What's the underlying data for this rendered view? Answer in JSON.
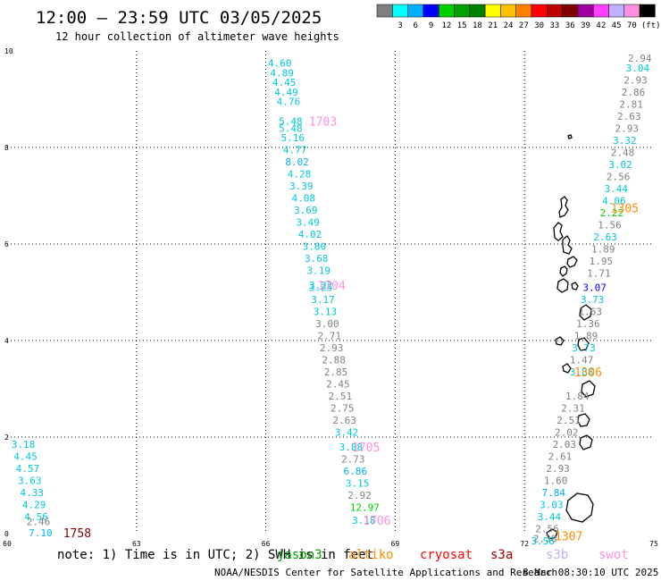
{
  "header": {
    "title": "12:00 – 23:59 UTC 03/05/2025",
    "subtitle": "12 hour collection of altimeter wave heights"
  },
  "colorbar": {
    "colors": [
      "#7f7f7f",
      "#00ffff",
      "#00b0ff",
      "#0000ff",
      "#00d000",
      "#00a000",
      "#008000",
      "#ffff00",
      "#ffc000",
      "#ff8000",
      "#ff0000",
      "#c00000",
      "#800000",
      "#a000a0",
      "#ff40ff",
      "#c0b0ff",
      "#ff90e0",
      "#000000"
    ],
    "labels": [
      "3",
      "6",
      "9",
      "12",
      "15",
      "18",
      "21",
      "24",
      "27",
      "30",
      "33",
      "36",
      "39",
      "42",
      "45",
      "70"
    ],
    "unit": "(ft)"
  },
  "legend": {
    "note": "note: 1) Time is in UTC; 2) SWH is in feet",
    "satellites": [
      {
        "name": "jason3",
        "color": "#00a000"
      },
      {
        "name": "altiko",
        "color": "#ff9000"
      },
      {
        "name": "cryosat",
        "color": "#ff0000"
      },
      {
        "name": "s3a",
        "color": "#a00000"
      },
      {
        "name": "s3b",
        "color": "#c0b0ff"
      },
      {
        "name": "swot",
        "color": "#ff90e0"
      }
    ]
  },
  "footer": {
    "credit": "NOAA/NESDIS Center for Satellite Applications and Research",
    "timestamp": "8 Mar 08:30:10 UTC 2025"
  },
  "chart_data": {
    "type": "scatter",
    "xlim": [
      60,
      75
    ],
    "ylim": [
      0,
      10
    ],
    "xticks": [
      "60",
      "63",
      "66",
      "69",
      "72",
      "75"
    ],
    "yticks": [
      "0",
      "2",
      "4",
      "6",
      "8",
      "10"
    ],
    "grid": true,
    "tracks": [
      {
        "label": "1703",
        "label_color": "#ff90e0",
        "label_pos": [
          67.0,
          8.55
        ],
        "points": [
          [
            66.05,
            9.75,
            "4.60",
            "#00c8d8"
          ],
          [
            66.1,
            9.55,
            "4.89",
            "#00c8d8"
          ],
          [
            66.15,
            9.35,
            "4.45",
            "#00c8d8"
          ],
          [
            66.2,
            9.15,
            "4.49",
            "#00c8d8"
          ],
          [
            66.25,
            8.95,
            "4.76",
            "#00c8d8"
          ],
          [
            66.3,
            8.55,
            "5.48",
            "#00c8d8"
          ],
          [
            66.3,
            8.4,
            "5.48",
            "#00c8d8"
          ],
          [
            66.35,
            8.2,
            "5.16",
            "#00c8d8"
          ],
          [
            66.4,
            7.95,
            "4.77",
            "#00c8d8"
          ],
          [
            66.45,
            7.7,
            "8.02",
            "#00b0ff"
          ],
          [
            66.5,
            7.45,
            "4.28",
            "#00c8d8"
          ],
          [
            66.55,
            7.2,
            "3.39",
            "#00c8d8"
          ],
          [
            66.6,
            6.95,
            "4.08",
            "#00c8d8"
          ],
          [
            66.65,
            6.7,
            "3.69",
            "#00c8d8"
          ],
          [
            66.7,
            6.45,
            "3.49",
            "#00c8d8"
          ],
          [
            66.75,
            6.2,
            "4.02",
            "#00c8d8"
          ]
        ]
      },
      {
        "label": "1704",
        "label_color": "#ff90e0",
        "label_pos": [
          67.2,
          5.15
        ],
        "points": [
          [
            66.85,
            5.95,
            "3.80",
            "#00c8d8"
          ],
          [
            66.9,
            5.7,
            "3.68",
            "#00c8d8"
          ],
          [
            66.95,
            5.45,
            "3.19",
            "#00c8d8"
          ],
          [
            67.0,
            5.15,
            "3.22",
            "#00c8d8"
          ],
          [
            67.0,
            5.1,
            "3.25",
            "#00c8d8"
          ],
          [
            67.05,
            4.85,
            "3.17",
            "#00c8d8"
          ],
          [
            67.1,
            4.6,
            "3.13",
            "#00c8d8"
          ],
          [
            67.15,
            4.35,
            "3.00",
            "#808080"
          ],
          [
            67.2,
            4.1,
            "2.71",
            "#808080"
          ],
          [
            67.25,
            3.85,
            "2.93",
            "#808080"
          ],
          [
            67.3,
            3.6,
            "2.88",
            "#808080"
          ],
          [
            67.35,
            3.35,
            "2.85",
            "#808080"
          ],
          [
            67.4,
            3.1,
            "2.45",
            "#808080"
          ],
          [
            67.45,
            2.85,
            "2.51",
            "#808080"
          ],
          [
            67.5,
            2.6,
            "2.75",
            "#808080"
          ],
          [
            67.55,
            2.35,
            "2.63",
            "#808080"
          ],
          [
            67.6,
            2.1,
            "3.42",
            "#00c8d8"
          ]
        ]
      },
      {
        "label": "1705",
        "label_color": "#ff90e0",
        "label_pos": [
          68.0,
          1.8
        ],
        "points": [
          [
            67.7,
            1.8,
            "3.88",
            "#00c8d8"
          ],
          [
            67.75,
            1.55,
            "2.73",
            "#808080"
          ],
          [
            67.8,
            1.3,
            "6.86",
            "#00b0ff"
          ],
          [
            67.85,
            1.05,
            "3.15",
            "#00c8d8"
          ],
          [
            67.9,
            0.8,
            "2.92",
            "#808080"
          ],
          [
            67.95,
            0.55,
            "12.97",
            "#00d000"
          ]
        ]
      },
      {
        "label": "1706",
        "label_color": "#ff90e0",
        "label_pos": [
          68.25,
          0.28
        ],
        "points": [
          [
            68.0,
            0.28,
            "3.18",
            "#00c8d8"
          ]
        ]
      },
      {
        "label": "1758",
        "label_color": "#800000",
        "label_pos": [
          61.3,
          0.02
        ],
        "points": [
          [
            60.1,
            1.85,
            "3.18",
            "#00c8d8"
          ],
          [
            60.15,
            1.6,
            "4.45",
            "#00c8d8"
          ],
          [
            60.2,
            1.35,
            "4.57",
            "#00c8d8"
          ],
          [
            60.25,
            1.1,
            "3.63",
            "#00c8d8"
          ],
          [
            60.3,
            0.85,
            "4.33",
            "#00c8d8"
          ],
          [
            60.35,
            0.6,
            "4.29",
            "#00c8d8"
          ],
          [
            60.4,
            0.35,
            "4.56",
            "#00c8d8"
          ],
          [
            60.45,
            0.25,
            "2.46",
            "#808080"
          ],
          [
            60.5,
            0.02,
            "7.10",
            "#00b0ff"
          ]
        ]
      },
      {
        "label": "1305",
        "label_color": "#ff9000",
        "label_pos": [
          74.0,
          6.75
        ],
        "points": [
          [
            74.4,
            9.85,
            "2.94",
            "#808080"
          ],
          [
            74.35,
            9.65,
            "3.04",
            "#00c8d8"
          ],
          [
            74.3,
            9.4,
            "2.93",
            "#808080"
          ],
          [
            74.25,
            9.15,
            "2.86",
            "#808080"
          ],
          [
            74.2,
            8.9,
            "2.81",
            "#808080"
          ],
          [
            74.15,
            8.65,
            "2.63",
            "#808080"
          ],
          [
            74.1,
            8.4,
            "2.93",
            "#808080"
          ],
          [
            74.05,
            8.15,
            "3.32",
            "#00c8d8"
          ],
          [
            74.0,
            7.9,
            "2.48",
            "#808080"
          ],
          [
            73.95,
            7.65,
            "3.02",
            "#00c8d8"
          ],
          [
            73.9,
            7.4,
            "2.56",
            "#808080"
          ],
          [
            73.85,
            7.15,
            "3.44",
            "#00c8d8"
          ],
          [
            73.8,
            6.9,
            "4.06",
            "#00c8d8"
          ],
          [
            73.75,
            6.65,
            "2.22",
            "#00d000"
          ],
          [
            73.7,
            6.4,
            "1.56",
            "#808080"
          ],
          [
            73.6,
            6.15,
            "2.63",
            "#00c8d8"
          ],
          [
            73.55,
            5.9,
            "1.89",
            "#808080"
          ],
          [
            73.5,
            5.65,
            "1.95",
            "#808080"
          ],
          [
            73.45,
            5.4,
            "1.71",
            "#808080"
          ],
          [
            73.35,
            5.1,
            "3.07",
            "#0000ff"
          ],
          [
            73.3,
            4.85,
            "3.73",
            "#00c8d8"
          ],
          [
            73.25,
            4.6,
            "1.63",
            "#808080"
          ],
          [
            73.2,
            4.35,
            "1.36",
            "#808080"
          ],
          [
            73.15,
            4.1,
            "1.89",
            "#808080"
          ],
          [
            73.1,
            3.85,
            "3.73",
            "#00c8d8"
          ],
          [
            73.05,
            3.6,
            "1.47",
            "#808080"
          ]
        ]
      },
      {
        "label": "1306",
        "label_color": "#ff9000",
        "label_pos": [
          73.15,
          3.35
        ],
        "points": [
          [
            73.05,
            3.35,
            "3.88",
            "#00c8d8"
          ],
          [
            72.95,
            2.85,
            "1.84",
            "#808080"
          ],
          [
            72.85,
            2.6,
            "2.31",
            "#808080"
          ],
          [
            72.75,
            2.35,
            "2.51",
            "#808080"
          ],
          [
            72.7,
            2.1,
            "2.02",
            "#808080"
          ],
          [
            72.65,
            1.85,
            "2.03",
            "#808080"
          ],
          [
            72.55,
            1.6,
            "2.61",
            "#808080"
          ],
          [
            72.5,
            1.35,
            "2.93",
            "#808080"
          ],
          [
            72.45,
            1.1,
            "1.60",
            "#808080"
          ],
          [
            72.4,
            0.85,
            "7.84",
            "#00b0ff"
          ],
          [
            72.35,
            0.6,
            "3.03",
            "#00c8d8"
          ],
          [
            72.3,
            0.35,
            "3.44",
            "#00c8d8"
          ],
          [
            72.25,
            0.1,
            "2.56",
            "#808080"
          ],
          [
            72.2,
            -0.1,
            "2.38",
            "#808080"
          ],
          [
            72.15,
            -0.15,
            "3.58",
            "#00c8d8"
          ]
        ]
      },
      {
        "label": "1307",
        "label_color": "#ff9000",
        "label_pos": [
          72.7,
          -0.05
        ],
        "points": []
      }
    ]
  }
}
